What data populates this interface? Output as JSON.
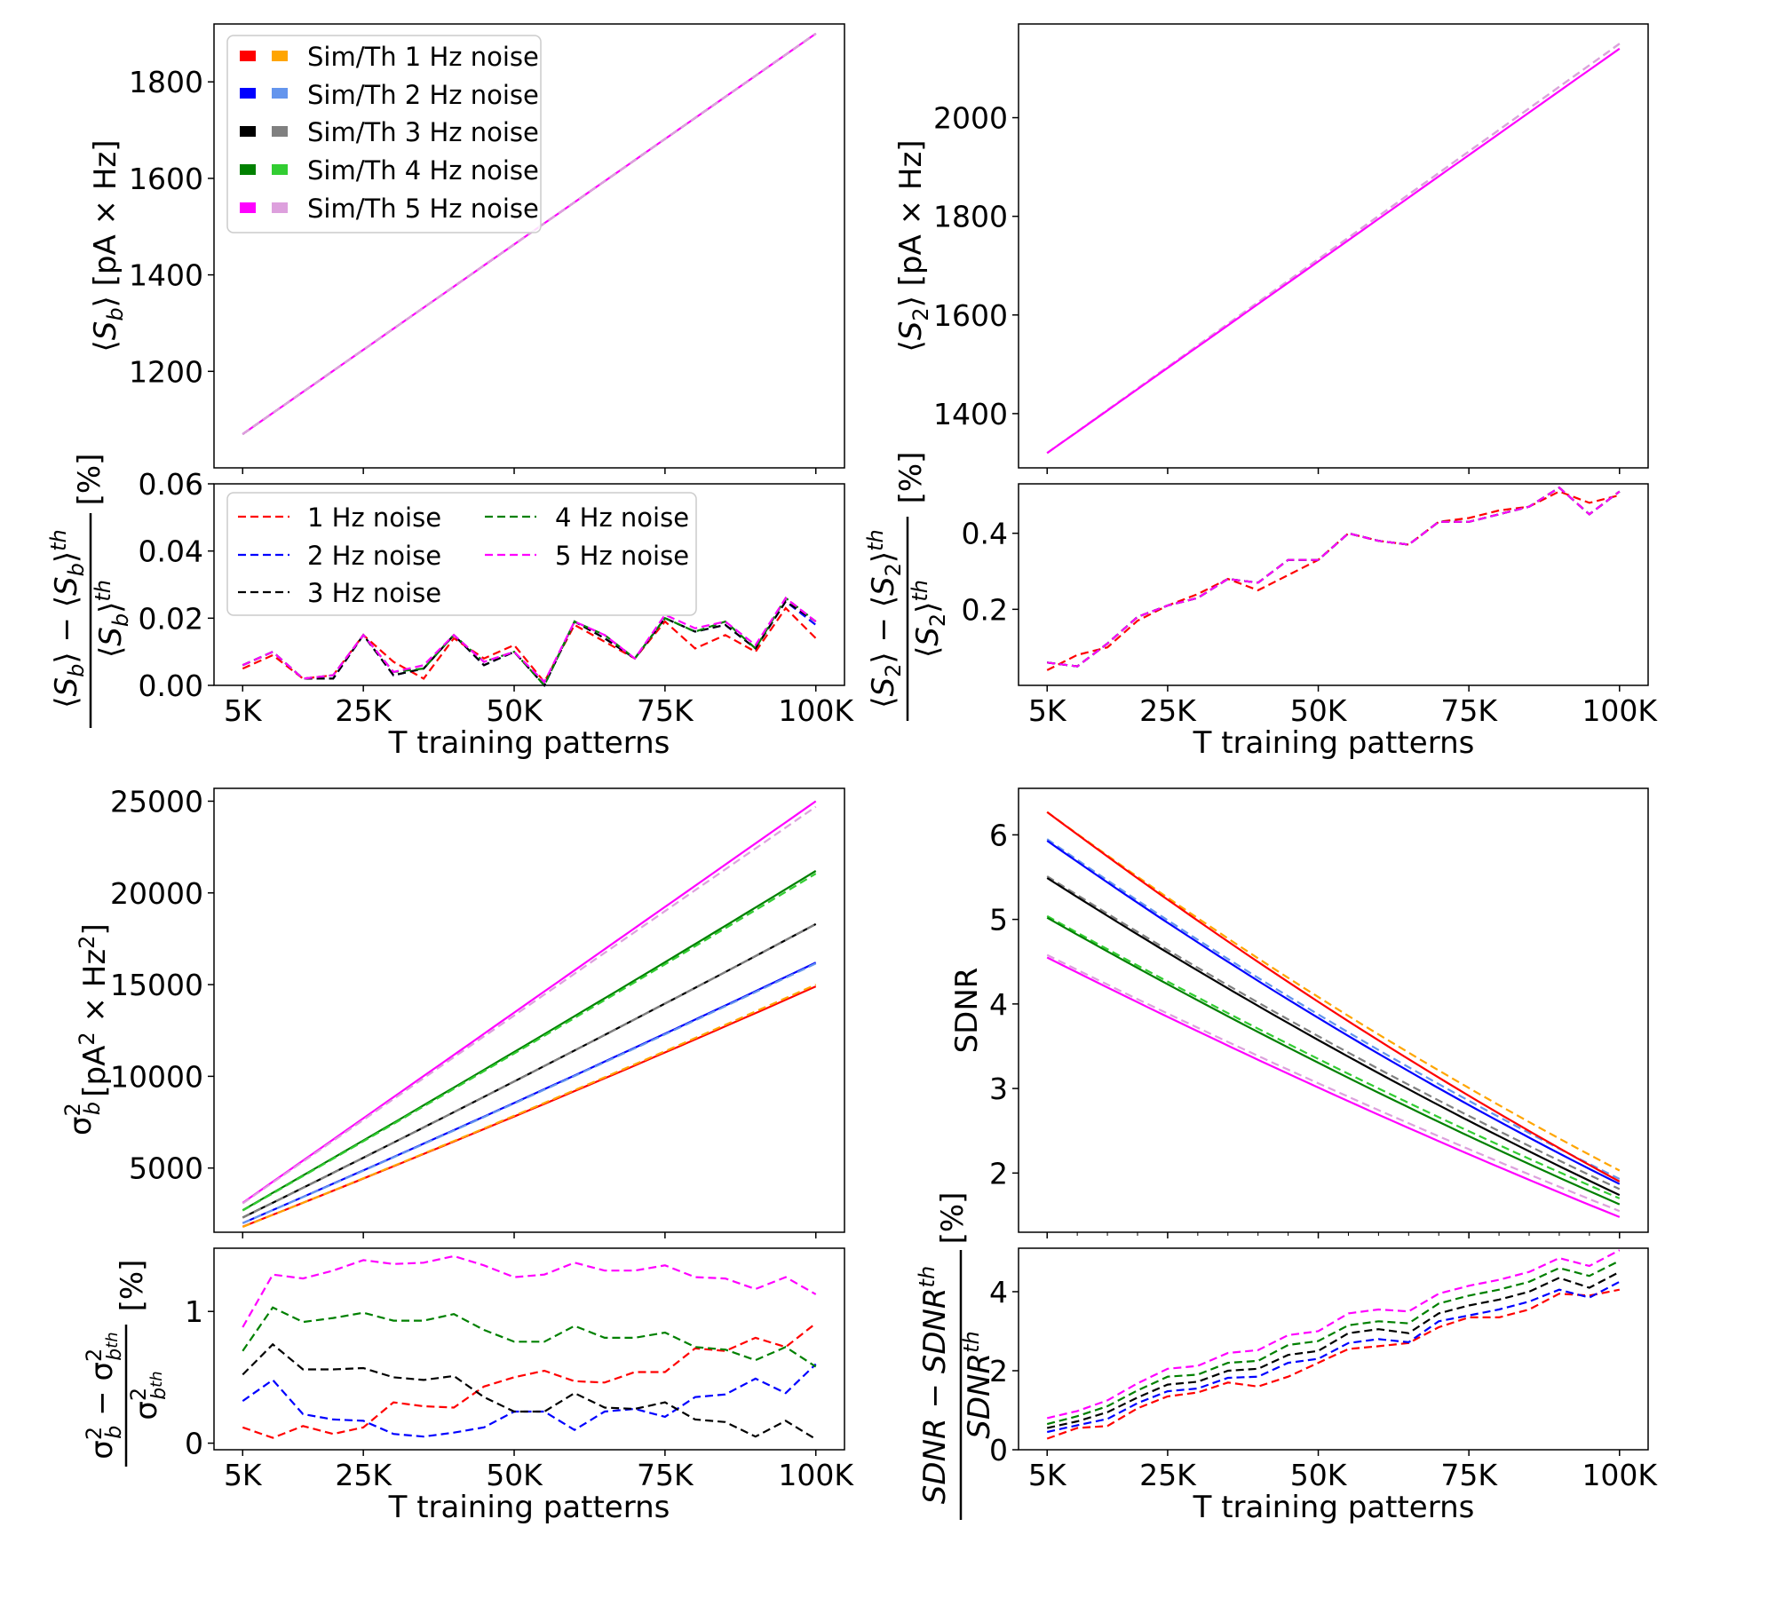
{
  "colors": {
    "sim": [
      "#ff0000",
      "#0000ff",
      "#000000",
      "#008000",
      "#ff00ff"
    ],
    "th": [
      "#ffa500",
      "#6495ed",
      "#808080",
      "#32cd32",
      "#dda0dd"
    ]
  },
  "legend_top": [
    "Sim/Th 1 Hz noise",
    "Sim/Th 2 Hz noise",
    "Sim/Th 3 Hz noise",
    "Sim/Th 4 Hz noise",
    "Sim/Th 5 Hz noise"
  ],
  "legend_ratio": [
    "1 Hz noise",
    "2 Hz noise",
    "3 Hz noise",
    "4 Hz noise",
    "5 Hz noise"
  ],
  "ylabels": {
    "sb_main": "⟨S_b⟩ [pA × Hz]",
    "sb_ratio_num": "⟨S_b⟩ − ⟨S_b⟩^th",
    "sb_ratio_den": "⟨S_b⟩^th",
    "s2_main": "⟨S_2⟩ [pA × Hz]",
    "s2_ratio_num": "⟨S_2⟩ − ⟨S_2⟩^th",
    "s2_ratio_den": "⟨S_2⟩^th",
    "var_main": "σ_b^2 [pA^2 × Hz^2]",
    "var_ratio_num": "σ_b^2 − σ_b^2 th",
    "var_ratio_den": "σ_b^2 th",
    "sdnr_main": "SDNR",
    "sdnr_ratio_num": "SDNR − SDNR^th",
    "sdnr_ratio_den": "SDNR^th",
    "pct": "[%]"
  },
  "chart_data": [
    {
      "id": "sb_main",
      "type": "line",
      "x": [
        5000,
        100000
      ],
      "ylim": [
        1000,
        1920
      ],
      "yticks": [
        1200,
        1400,
        1600,
        1800
      ],
      "series_sim": [
        {
          "name": "Sim 1-5 Hz noise",
          "values": [
            1070,
            1900
          ]
        }
      ],
      "series_th": [
        {
          "name": "Th 1-5 Hz noise",
          "values": [
            1070,
            1900
          ]
        }
      ]
    },
    {
      "id": "sb_ratio",
      "type": "line",
      "x": [
        5000,
        10000,
        15000,
        20000,
        25000,
        30000,
        35000,
        40000,
        45000,
        50000,
        55000,
        60000,
        65000,
        70000,
        75000,
        80000,
        85000,
        90000,
        95000,
        100000
      ],
      "xticklabels": [
        "5K",
        "25K",
        "50K",
        "75K",
        "100K"
      ],
      "xticks": [
        5000,
        25000,
        50000,
        75000,
        100000
      ],
      "xlabel": "T training patterns",
      "ylim": [
        0,
        0.06
      ],
      "yticks": [
        0.0,
        0.02,
        0.04,
        0.06
      ],
      "yticklabels": [
        "0.00",
        "0.02",
        "0.04",
        "0.06"
      ],
      "series": [
        {
          "name": "1 Hz noise",
          "values": [
            0.005,
            0.009,
            0.002,
            0.003,
            0.015,
            0.007,
            0.002,
            0.014,
            0.008,
            0.012,
            0.001,
            0.018,
            0.013,
            0.008,
            0.019,
            0.011,
            0.015,
            0.01,
            0.023,
            0.014
          ]
        },
        {
          "name": "2 Hz noise",
          "values": [
            0.006,
            0.01,
            0.002,
            0.002,
            0.015,
            0.003,
            0.005,
            0.015,
            0.006,
            0.01,
            0.0,
            0.019,
            0.014,
            0.008,
            0.02,
            0.016,
            0.018,
            0.011,
            0.025,
            0.018
          ]
        },
        {
          "name": "3 Hz noise",
          "values": [
            0.006,
            0.01,
            0.002,
            0.002,
            0.015,
            0.003,
            0.005,
            0.015,
            0.006,
            0.01,
            0.0,
            0.019,
            0.014,
            0.008,
            0.02,
            0.016,
            0.018,
            0.011,
            0.025,
            0.019
          ]
        },
        {
          "name": "4 Hz noise",
          "values": [
            0.006,
            0.01,
            0.002,
            0.003,
            0.015,
            0.004,
            0.005,
            0.015,
            0.007,
            0.01,
            0.0,
            0.019,
            0.015,
            0.008,
            0.02,
            0.016,
            0.019,
            0.011,
            0.026,
            0.019
          ]
        },
        {
          "name": "5 Hz noise",
          "values": [
            0.006,
            0.01,
            0.002,
            0.003,
            0.015,
            0.004,
            0.006,
            0.015,
            0.007,
            0.01,
            0.001,
            0.019,
            0.015,
            0.008,
            0.021,
            0.017,
            0.019,
            0.012,
            0.026,
            0.019
          ]
        }
      ]
    },
    {
      "id": "s2_main",
      "type": "line",
      "x": [
        5000,
        100000
      ],
      "ylim": [
        1290,
        2190
      ],
      "yticks": [
        1400,
        1600,
        1800,
        2000
      ],
      "series_sim": [
        {
          "name": "Sim 1-5 Hz noise",
          "values": [
            1320,
            2140
          ]
        }
      ],
      "series_th": [
        {
          "name": "Th 1-5 Hz noise",
          "values": [
            1320,
            2150
          ]
        }
      ]
    },
    {
      "id": "s2_ratio",
      "type": "line",
      "x": [
        5000,
        10000,
        15000,
        20000,
        25000,
        30000,
        35000,
        40000,
        45000,
        50000,
        55000,
        60000,
        65000,
        70000,
        75000,
        80000,
        85000,
        90000,
        95000,
        100000
      ],
      "xticklabels": [
        "5K",
        "25K",
        "50K",
        "75K",
        "100K"
      ],
      "xticks": [
        5000,
        25000,
        50000,
        75000,
        100000
      ],
      "xlabel": "T training patterns",
      "ylim": [
        0.0,
        0.53
      ],
      "yticks": [
        0.2,
        0.4
      ],
      "yticklabels": [
        "0.2",
        "0.4"
      ],
      "series": [
        {
          "name": "1 Hz noise",
          "values": [
            0.04,
            0.08,
            0.1,
            0.17,
            0.21,
            0.24,
            0.28,
            0.25,
            0.29,
            0.33,
            0.4,
            0.38,
            0.37,
            0.43,
            0.44,
            0.46,
            0.47,
            0.51,
            0.48,
            0.5
          ]
        },
        {
          "name": "2 Hz noise",
          "values": [
            0.06,
            0.05,
            0.11,
            0.18,
            0.21,
            0.23,
            0.28,
            0.27,
            0.33,
            0.33,
            0.4,
            0.38,
            0.37,
            0.43,
            0.43,
            0.45,
            0.47,
            0.52,
            0.45,
            0.51
          ]
        },
        {
          "name": "3 Hz noise",
          "values": [
            0.06,
            0.05,
            0.11,
            0.18,
            0.21,
            0.23,
            0.28,
            0.27,
            0.33,
            0.33,
            0.4,
            0.38,
            0.37,
            0.43,
            0.43,
            0.45,
            0.47,
            0.52,
            0.45,
            0.51
          ]
        },
        {
          "name": "4 Hz noise",
          "values": [
            0.06,
            0.05,
            0.11,
            0.18,
            0.21,
            0.23,
            0.28,
            0.27,
            0.33,
            0.33,
            0.4,
            0.38,
            0.37,
            0.43,
            0.43,
            0.45,
            0.47,
            0.52,
            0.45,
            0.51
          ]
        },
        {
          "name": "5 Hz noise",
          "values": [
            0.06,
            0.05,
            0.11,
            0.18,
            0.21,
            0.23,
            0.28,
            0.27,
            0.33,
            0.33,
            0.4,
            0.38,
            0.37,
            0.43,
            0.43,
            0.45,
            0.47,
            0.52,
            0.45,
            0.51
          ]
        }
      ]
    },
    {
      "id": "var_main",
      "type": "line",
      "x": [
        5000,
        100000
      ],
      "ylim": [
        1500,
        25700
      ],
      "yticks": [
        5000,
        10000,
        15000,
        20000,
        25000
      ],
      "series_sim": [
        {
          "name": "1 Hz noise",
          "values": [
            1800,
            14900
          ],
          "curve": 0.06
        },
        {
          "name": "2 Hz noise",
          "values": [
            2000,
            16200
          ],
          "curve": 0.05
        },
        {
          "name": "3 Hz noise",
          "values": [
            2300,
            18300
          ],
          "curve": 0.04
        },
        {
          "name": "4 Hz noise",
          "values": [
            2700,
            21200
          ],
          "curve": 0.03
        },
        {
          "name": "5 Hz noise",
          "values": [
            3100,
            25000
          ],
          "curve": 0.0
        }
      ],
      "series_th": [
        {
          "name": "1 Hz noise",
          "values": [
            1790,
            15000
          ],
          "curve": 0.06
        },
        {
          "name": "2 Hz noise",
          "values": [
            1990,
            16150
          ],
          "curve": 0.05
        },
        {
          "name": "3 Hz noise",
          "values": [
            2290,
            18300
          ],
          "curve": 0.04
        },
        {
          "name": "4 Hz noise",
          "values": [
            2680,
            21050
          ],
          "curve": 0.03
        },
        {
          "name": "5 Hz noise",
          "values": [
            3070,
            24700
          ],
          "curve": 0.0
        }
      ]
    },
    {
      "id": "var_ratio",
      "type": "line",
      "x": [
        5000,
        10000,
        15000,
        20000,
        25000,
        30000,
        35000,
        40000,
        45000,
        50000,
        55000,
        60000,
        65000,
        70000,
        75000,
        80000,
        85000,
        90000,
        95000,
        100000
      ],
      "xticklabels": [
        "5K",
        "25K",
        "50K",
        "75K",
        "100K"
      ],
      "xticks": [
        5000,
        25000,
        50000,
        75000,
        100000
      ],
      "xlabel": "T training patterns",
      "ylim": [
        -0.05,
        1.48
      ],
      "yticks": [
        0,
        1
      ],
      "yticklabels": [
        "0",
        "1"
      ],
      "series": [
        {
          "name": "1 Hz noise",
          "values": [
            0.12,
            0.04,
            0.13,
            0.07,
            0.12,
            0.31,
            0.28,
            0.27,
            0.43,
            0.5,
            0.55,
            0.47,
            0.46,
            0.54,
            0.54,
            0.72,
            0.7,
            0.8,
            0.73,
            0.91
          ]
        },
        {
          "name": "2 Hz noise",
          "values": [
            0.32,
            0.48,
            0.22,
            0.18,
            0.17,
            0.07,
            0.05,
            0.08,
            0.12,
            0.24,
            0.24,
            0.1,
            0.24,
            0.26,
            0.2,
            0.35,
            0.37,
            0.49,
            0.38,
            0.6
          ]
        },
        {
          "name": "3 Hz noise",
          "values": [
            0.52,
            0.75,
            0.56,
            0.56,
            0.57,
            0.5,
            0.48,
            0.51,
            0.35,
            0.24,
            0.24,
            0.38,
            0.27,
            0.26,
            0.31,
            0.18,
            0.16,
            0.05,
            0.17,
            0.03
          ]
        },
        {
          "name": "4 Hz noise",
          "values": [
            0.7,
            1.03,
            0.92,
            0.95,
            0.99,
            0.93,
            0.93,
            0.98,
            0.86,
            0.77,
            0.77,
            0.89,
            0.8,
            0.8,
            0.84,
            0.73,
            0.71,
            0.63,
            0.73,
            0.58
          ]
        },
        {
          "name": "5 Hz noise",
          "values": [
            0.88,
            1.28,
            1.25,
            1.31,
            1.39,
            1.36,
            1.37,
            1.42,
            1.35,
            1.26,
            1.28,
            1.37,
            1.31,
            1.31,
            1.35,
            1.26,
            1.25,
            1.17,
            1.26,
            1.13
          ]
        }
      ]
    },
    {
      "id": "sdnr_main",
      "type": "line",
      "x": [
        5000,
        100000
      ],
      "ylim": [
        1.3,
        6.55
      ],
      "yticks": [
        2,
        3,
        4,
        5,
        6
      ],
      "series_sim": [
        {
          "name": "1 Hz noise",
          "values": [
            6.27,
            1.9
          ],
          "curve": 0.16
        },
        {
          "name": "2 Hz noise",
          "values": [
            5.93,
            1.87
          ],
          "curve": 0.17
        },
        {
          "name": "3 Hz noise",
          "values": [
            5.49,
            1.74
          ],
          "curve": 0.15
        },
        {
          "name": "4 Hz noise",
          "values": [
            5.02,
            1.63
          ],
          "curve": 0.13
        },
        {
          "name": "5 Hz noise",
          "values": [
            4.55,
            1.48
          ],
          "curve": 0.11
        }
      ],
      "series_th": [
        {
          "name": "1 Hz noise",
          "values": [
            6.27,
            2.03
          ],
          "curve": 0.17
        },
        {
          "name": "2 Hz noise",
          "values": [
            5.95,
            1.93
          ],
          "curve": 0.17
        },
        {
          "name": "3 Hz noise",
          "values": [
            5.51,
            1.81
          ],
          "curve": 0.15
        },
        {
          "name": "4 Hz noise",
          "values": [
            5.04,
            1.7
          ],
          "curve": 0.13
        },
        {
          "name": "5 Hz noise",
          "values": [
            4.58,
            1.55
          ],
          "curve": 0.11
        }
      ]
    },
    {
      "id": "sdnr_ratio",
      "type": "line",
      "x": [
        5000,
        10000,
        15000,
        20000,
        25000,
        30000,
        35000,
        40000,
        45000,
        50000,
        55000,
        60000,
        65000,
        70000,
        75000,
        80000,
        85000,
        90000,
        95000,
        100000
      ],
      "xticklabels": [
        "5K",
        "25K",
        "50K",
        "75K",
        "100K"
      ],
      "xticks": [
        5000,
        25000,
        50000,
        75000,
        100000
      ],
      "xlabel": "T training patterns",
      "ylim": [
        0,
        5.1
      ],
      "yticks": [
        0,
        2,
        4
      ],
      "yticklabels": [
        "0",
        "2",
        "4"
      ],
      "series": [
        {
          "name": "1 Hz noise",
          "values": [
            0.28,
            0.55,
            0.6,
            1.05,
            1.35,
            1.45,
            1.7,
            1.6,
            1.85,
            2.2,
            2.55,
            2.62,
            2.7,
            3.1,
            3.35,
            3.35,
            3.55,
            3.95,
            3.9,
            4.05
          ]
        },
        {
          "name": "2 Hz noise",
          "values": [
            0.45,
            0.62,
            0.78,
            1.18,
            1.48,
            1.55,
            1.82,
            1.85,
            2.2,
            2.3,
            2.7,
            2.8,
            2.72,
            3.25,
            3.4,
            3.55,
            3.75,
            4.05,
            3.85,
            4.25
          ]
        },
        {
          "name": "3 Hz noise",
          "values": [
            0.55,
            0.72,
            0.95,
            1.32,
            1.65,
            1.72,
            2.0,
            2.05,
            2.4,
            2.5,
            2.95,
            3.05,
            2.95,
            3.45,
            3.65,
            3.8,
            4.0,
            4.35,
            4.1,
            4.5
          ]
        },
        {
          "name": "4 Hz noise",
          "values": [
            0.65,
            0.85,
            1.1,
            1.5,
            1.85,
            1.9,
            2.2,
            2.25,
            2.65,
            2.75,
            3.15,
            3.25,
            3.2,
            3.7,
            3.9,
            4.05,
            4.25,
            4.6,
            4.4,
            4.78
          ]
        },
        {
          "name": "5 Hz noise",
          "values": [
            0.8,
            0.98,
            1.25,
            1.68,
            2.05,
            2.12,
            2.45,
            2.52,
            2.9,
            3.0,
            3.45,
            3.55,
            3.5,
            3.95,
            4.15,
            4.3,
            4.5,
            4.85,
            4.65,
            5.05
          ]
        }
      ]
    }
  ]
}
